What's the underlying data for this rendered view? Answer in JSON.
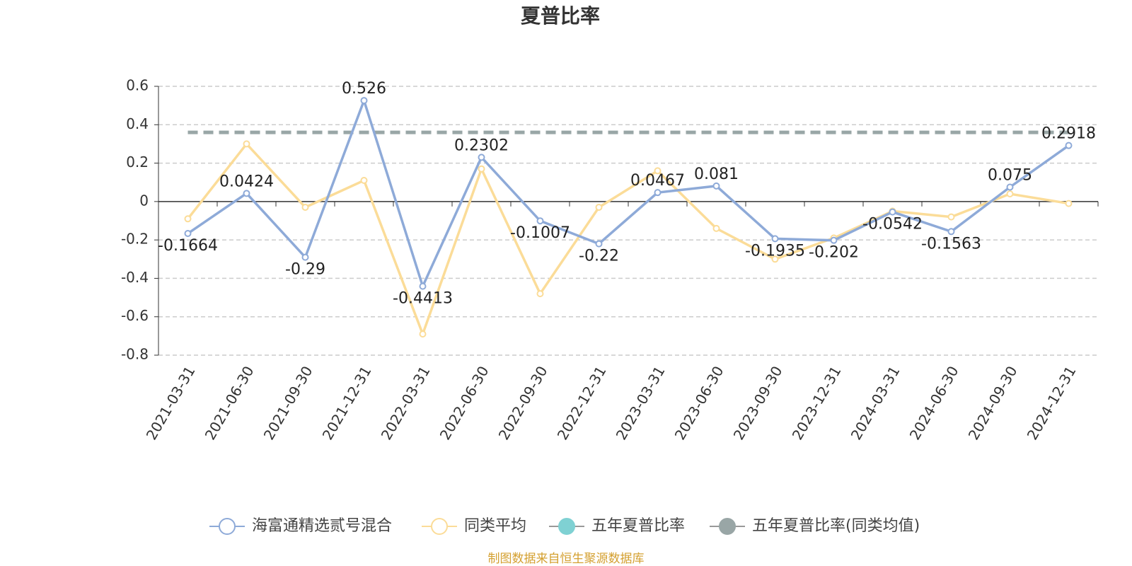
{
  "chart_data": {
    "type": "line",
    "title": "夏普比率",
    "categories": [
      "2021-03-31",
      "2021-06-30",
      "2021-09-30",
      "2021-12-31",
      "2022-03-31",
      "2022-06-30",
      "2022-09-30",
      "2022-12-31",
      "2023-03-31",
      "2023-06-30",
      "2023-09-30",
      "2023-12-31",
      "2024-03-31",
      "2024-06-30",
      "2024-09-30",
      "2024-12-31"
    ],
    "series": [
      {
        "name": "海富通精选贰号混合",
        "color": "#8eaad8",
        "values": [
          -0.1664,
          0.0424,
          -0.29,
          0.526,
          -0.4413,
          0.2302,
          -0.1007,
          -0.22,
          0.0467,
          0.081,
          -0.1935,
          -0.202,
          -0.0542,
          -0.1563,
          0.075,
          0.2918
        ]
      },
      {
        "name": "同类平均",
        "color": "#fbdc98",
        "values": [
          -0.09,
          0.3,
          -0.03,
          0.11,
          -0.69,
          0.17,
          -0.48,
          -0.03,
          0.16,
          -0.14,
          -0.3,
          -0.19,
          -0.05,
          -0.08,
          0.04,
          -0.01
        ]
      },
      {
        "name": "五年夏普比率",
        "color": "#7fd1d3"
      },
      {
        "name": "五年夏普比率(同类均值)",
        "color": "#99a6a6",
        "value": 0.36
      }
    ],
    "ylim": [
      -0.8,
      0.6
    ],
    "yticks": [
      -0.8,
      -0.6,
      -0.4,
      -0.2,
      0,
      0.2,
      0.4,
      0.6
    ],
    "grid": true,
    "source": "制图数据来自恒生聚源数据库"
  }
}
